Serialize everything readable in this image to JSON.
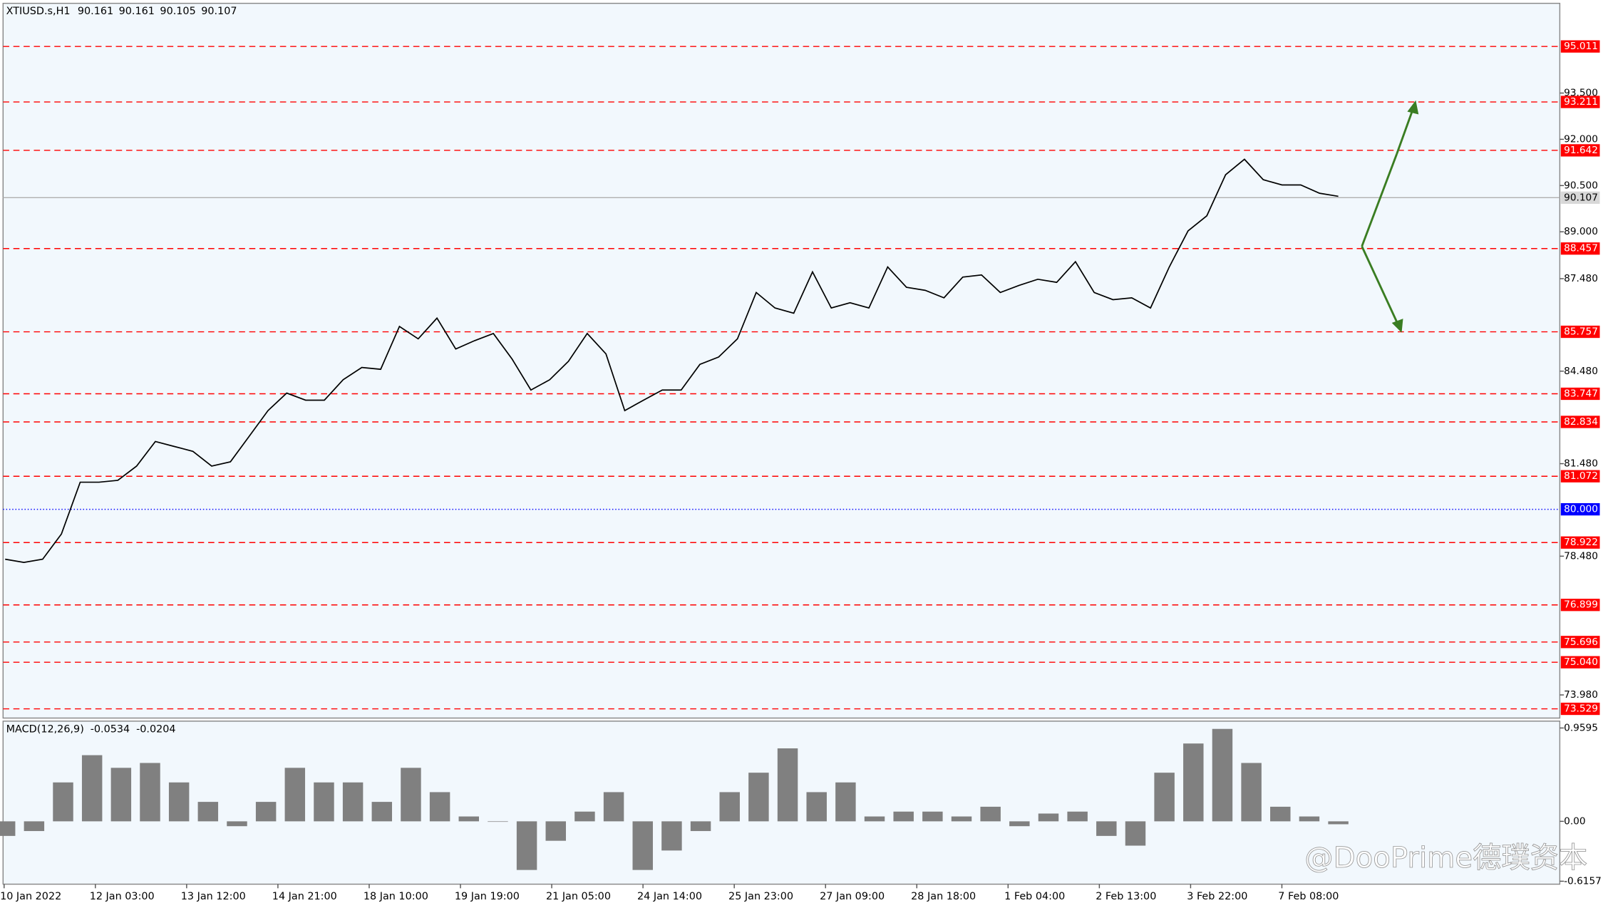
{
  "header": {
    "symbol": "XTIUSD.s,H1",
    "ohlc": [
      90.161,
      90.161,
      90.105,
      90.107
    ]
  },
  "chart_data": [
    {
      "type": "line",
      "series": [
        {
          "color": "#000000",
          "values": [
            78.38,
            78.28,
            78.38,
            79.2,
            80.88,
            80.88,
            80.94,
            81.4,
            82.2,
            82.04,
            81.88,
            81.4,
            81.54,
            82.37,
            83.2,
            83.77,
            83.54,
            83.54,
            84.2,
            84.6,
            84.54,
            85.93,
            85.53,
            86.2,
            85.2,
            85.47,
            85.7,
            84.87,
            83.87,
            84.2,
            84.8,
            85.7,
            85.04,
            83.2,
            83.54,
            83.87,
            83.87,
            84.7,
            84.94,
            85.53,
            87.03,
            86.53,
            86.36,
            87.7,
            86.53,
            86.7,
            86.53,
            87.86,
            87.2,
            87.1,
            86.86,
            87.53,
            87.6,
            87.03,
            87.26,
            87.46,
            87.36,
            88.03,
            87.03,
            86.8,
            86.86,
            86.53,
            87.86,
            89.03,
            89.52,
            90.85,
            91.35,
            90.69,
            90.52,
            90.52,
            90.25,
            90.15
          ]
        }
      ],
      "ylim": [
        73.23,
        96.41
      ],
      "yticks": [
        {
          "value": 93.5,
          "label": "93.500"
        },
        {
          "value": 92,
          "label": "92.000"
        },
        {
          "value": 90.5,
          "label": "90.500"
        },
        {
          "value": 89,
          "label": "89.000"
        },
        {
          "value": 87.48,
          "label": "87.480"
        },
        {
          "value": 84.48,
          "label": "84.480"
        },
        {
          "value": 81.48,
          "label": "81.480"
        },
        {
          "value": 78.48,
          "label": "78.480"
        },
        {
          "value": 73.98,
          "label": "73.980"
        }
      ],
      "levels": [
        95.011,
        93.211,
        91.642,
        88.457,
        85.757,
        83.747,
        82.834,
        81.072,
        78.922,
        76.899,
        75.696,
        {
          "value": 75.04,
          "label": "75.040"
        },
        73.529
      ],
      "level_color": "#ff0000",
      "round_levels": [
        {
          "value": 80,
          "label": "80.000"
        }
      ],
      "round_color": "#0000ff",
      "current_price": 90.107,
      "x_labels": [
        "10 Jan 2022",
        "12 Jan 03:00",
        "13 Jan 12:00",
        "14 Jan 21:00",
        "18 Jan 10:00",
        "19 Jan 19:00",
        "21 Jan 05:00",
        "24 Jan 14:00",
        "25 Jan 23:00",
        "27 Jan 09:00",
        "28 Jan 18:00",
        "1 Feb 04:00",
        "2 Feb 13:00",
        "3 Feb 22:00",
        "7 Feb 08:00"
      ]
    },
    {
      "type": "histogram",
      "name": "MACD(12,26,9)",
      "readings": [
        -0.0534,
        -0.0204
      ],
      "color": "#808080",
      "values": [
        -0.15,
        -0.1,
        0.4,
        0.68,
        0.55,
        0.6,
        0.4,
        0.2,
        -0.05,
        0.2,
        0.55,
        0.4,
        0.4,
        0.2,
        0.55,
        0.3,
        0.05,
        0.0,
        -0.5,
        -0.2,
        0.1,
        0.3,
        -0.5,
        -0.3,
        -0.1,
        0.3,
        0.5,
        0.75,
        0.3,
        0.4,
        0.05,
        0.1,
        0.1,
        0.05,
        0.15,
        -0.05,
        0.08,
        0.1,
        -0.15,
        -0.25,
        0.5,
        0.8,
        0.95,
        0.6,
        0.15,
        0.05,
        -0.03
      ],
      "ylim": [
        -0.646,
        1.03
      ],
      "yticks": [
        0.9595,
        {
          "value": 0,
          "label": "0.00"
        },
        -0.6157
      ]
    }
  ],
  "watermark": "@DooPrime德璞资本"
}
